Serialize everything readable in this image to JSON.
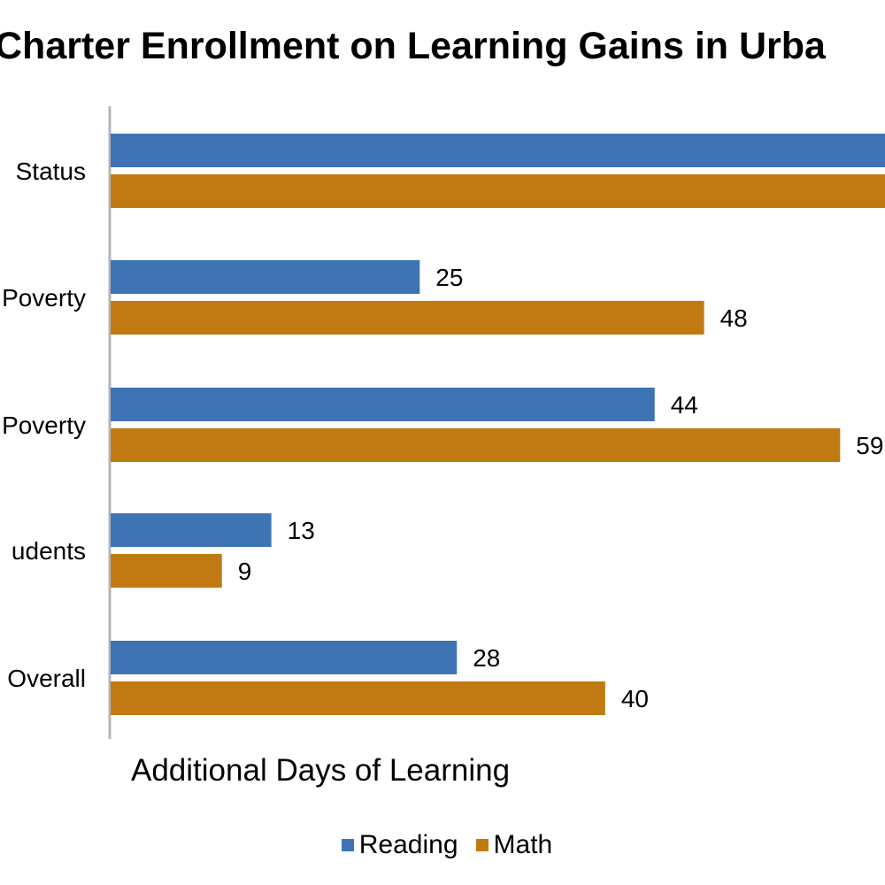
{
  "chart_data": {
    "type": "bar",
    "orientation": "horizontal",
    "title": "Charter Enrollment on Learning Gains in Urba",
    "categories": [
      "Status",
      "Poverty",
      "Poverty",
      "udents",
      "Overall"
    ],
    "series": [
      {
        "name": "Reading",
        "values": [
          null,
          25,
          44,
          13,
          28
        ],
        "color": "#3e73b4"
      },
      {
        "name": "Math",
        "values": [
          null,
          48,
          59,
          9,
          40
        ],
        "color": "#c07a11"
      }
    ],
    "data_labels": {
      "Reading": [
        "",
        "25",
        "44",
        "13",
        "28"
      ],
      "Math": [
        "",
        "48",
        "59",
        "9",
        "40"
      ]
    },
    "xlabel": "Additional Days of Learning",
    "ylabel": "",
    "xlim": [
      0,
      62.7
    ],
    "grid": false,
    "legend_position": "bottom"
  }
}
